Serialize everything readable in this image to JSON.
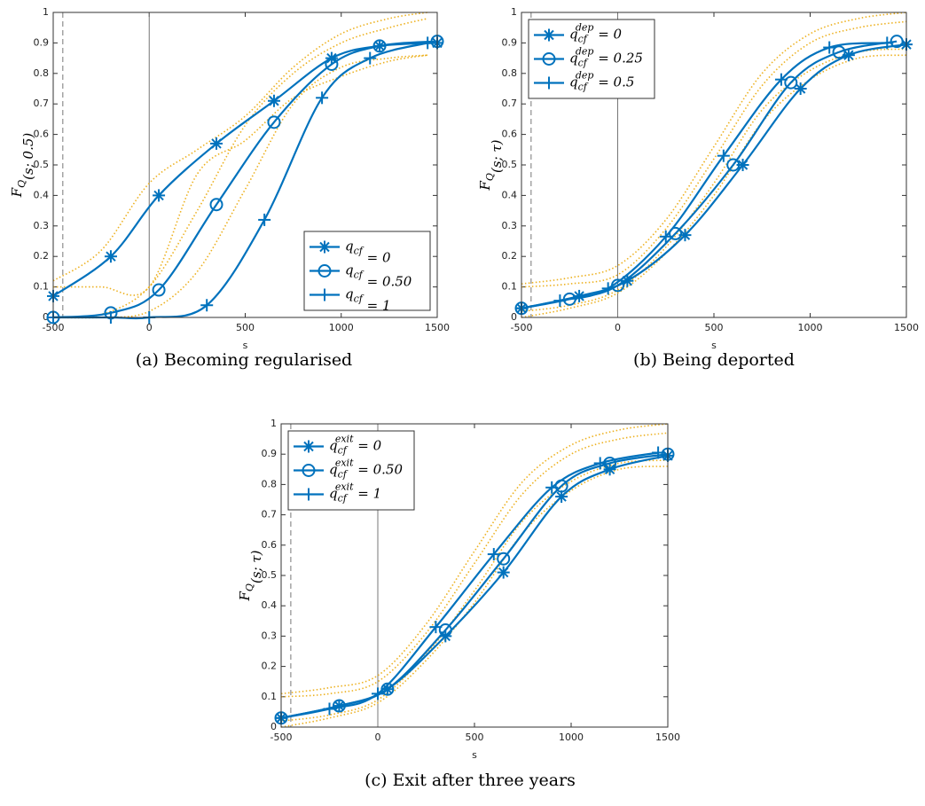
{
  "chart_data": [
    {
      "type": "line",
      "caption": "(a) Becoming regularised",
      "xlabel": "s",
      "ylabel": "FQ(s; 0.5)",
      "xlim": [
        -500,
        1500
      ],
      "xticks": [
        -500,
        0,
        500,
        1000,
        1500
      ],
      "ylim": [
        0,
        1
      ],
      "yticks": [
        0,
        0.1,
        0.2,
        0.3,
        0.4,
        0.5,
        0.6,
        0.7,
        0.8,
        0.9,
        1
      ],
      "legend": "lower right",
      "vlines": [
        {
          "value": -450,
          "style": "dashed"
        },
        {
          "value": 0,
          "style": "solid"
        }
      ],
      "series": [
        {
          "name": "qcf = 0",
          "color": "#0072bd",
          "marker": "star",
          "x": [
            -500,
            -200,
            50,
            350,
            650,
            950,
            1200,
            1500
          ],
          "values": [
            0.07,
            0.2,
            0.4,
            0.57,
            0.71,
            0.85,
            0.89,
            0.9
          ]
        },
        {
          "name": "qcf = 0.50",
          "color": "#0072bd",
          "marker": "circle",
          "x": [
            -500,
            -200,
            50,
            350,
            650,
            950,
            1200,
            1500
          ],
          "values": [
            0,
            0.015,
            0.09,
            0.37,
            0.64,
            0.83,
            0.89,
            0.905
          ]
        },
        {
          "name": "qcf = 1",
          "color": "#0072bd",
          "marker": "plus",
          "x": [
            -500,
            -200,
            0,
            300,
            600,
            900,
            1150,
            1450
          ],
          "values": [
            0,
            0,
            0,
            0.04,
            0.32,
            0.72,
            0.85,
            0.9
          ]
        }
      ],
      "bands": {
        "color": "#edb120",
        "x": [
          -500,
          -250,
          0,
          250,
          500,
          750,
          1000,
          1250,
          1450
        ],
        "series": [
          [
            0.12,
            0.22,
            0.44,
            0.55,
            0.66,
            0.82,
            0.93,
            0.98,
            1
          ],
          [
            0.1,
            0.1,
            0.1,
            0.47,
            0.58,
            0.72,
            0.79,
            0.84,
            0.86
          ],
          [
            0,
            0.01,
            0.1,
            0.35,
            0.63,
            0.8,
            0.9,
            0.95,
            0.98
          ],
          [
            0,
            0,
            0.02,
            0.15,
            0.42,
            0.7,
            0.82,
            0.85,
            0.86
          ]
        ]
      }
    },
    {
      "type": "line",
      "caption": "(b) Being deported",
      "xlabel": "s",
      "ylabel": "FQ(s; τ)",
      "xlim": [
        -500,
        1500
      ],
      "xticks": [
        -500,
        0,
        500,
        1000,
        1500
      ],
      "ylim": [
        0,
        1
      ],
      "yticks": [
        0,
        0.1,
        0.2,
        0.3,
        0.4,
        0.5,
        0.6,
        0.7,
        0.8,
        0.9,
        1
      ],
      "legend": "upper left",
      "vlines": [
        {
          "value": -450,
          "style": "dashed"
        },
        {
          "value": 0,
          "style": "solid"
        }
      ],
      "series": [
        {
          "name": "qcfdep = 0",
          "color": "#0072bd",
          "marker": "star",
          "x": [
            -500,
            -200,
            50,
            350,
            650,
            950,
            1200,
            1500
          ],
          "values": [
            0.03,
            0.07,
            0.12,
            0.27,
            0.5,
            0.75,
            0.86,
            0.895
          ]
        },
        {
          "name": "qcfdep = 0.25",
          "color": "#0072bd",
          "marker": "circle",
          "x": [
            -500,
            -250,
            0,
            300,
            600,
            900,
            1150,
            1450
          ],
          "values": [
            0.03,
            0.06,
            0.105,
            0.275,
            0.5,
            0.77,
            0.87,
            0.905
          ]
        },
        {
          "name": "qcfdep = 0.5",
          "color": "#0072bd",
          "marker": "plus",
          "x": [
            -500,
            -300,
            -50,
            250,
            550,
            850,
            1100,
            1400
          ],
          "values": [
            0.03,
            0.055,
            0.095,
            0.265,
            0.53,
            0.78,
            0.885,
            0.9
          ]
        }
      ],
      "bands": {
        "color": "#edb120",
        "x": [
          -500,
          -250,
          0,
          250,
          500,
          750,
          1000,
          1250,
          1500
        ],
        "series": [
          [
            0.11,
            0.13,
            0.17,
            0.32,
            0.56,
            0.8,
            0.93,
            0.98,
            1
          ],
          [
            0.1,
            0.11,
            0.14,
            0.29,
            0.52,
            0.76,
            0.9,
            0.95,
            0.97
          ],
          [
            0.02,
            0.04,
            0.09,
            0.23,
            0.44,
            0.68,
            0.81,
            0.87,
            0.88
          ],
          [
            0,
            0.03,
            0.08,
            0.21,
            0.4,
            0.64,
            0.78,
            0.85,
            0.86
          ]
        ]
      }
    },
    {
      "type": "line",
      "caption": "(c) Exit after three years",
      "xlabel": "s",
      "ylabel": "FQ(s; τ)",
      "xlim": [
        -500,
        1500
      ],
      "xticks": [
        -500,
        0,
        500,
        1000,
        1500
      ],
      "ylim": [
        0,
        1
      ],
      "yticks": [
        0,
        0.1,
        0.2,
        0.3,
        0.4,
        0.5,
        0.6,
        0.7,
        0.8,
        0.9,
        1
      ],
      "legend": "upper left",
      "vlines": [
        {
          "value": -450,
          "style": "dashed"
        },
        {
          "value": 0,
          "style": "solid"
        }
      ],
      "series": [
        {
          "name": "qcfexit = 0",
          "color": "#0072bd",
          "marker": "star",
          "x": [
            -500,
            -200,
            50,
            350,
            650,
            950,
            1200,
            1500
          ],
          "values": [
            0.03,
            0.07,
            0.125,
            0.3,
            0.51,
            0.76,
            0.85,
            0.895
          ]
        },
        {
          "name": "qcfexit = 0.50",
          "color": "#0072bd",
          "marker": "circle",
          "x": [
            -500,
            -200,
            50,
            350,
            650,
            950,
            1200,
            1500
          ],
          "values": [
            0.03,
            0.07,
            0.125,
            0.32,
            0.555,
            0.795,
            0.87,
            0.9
          ]
        },
        {
          "name": "qcfexit = 1",
          "color": "#0072bd",
          "marker": "plus",
          "x": [
            -500,
            -250,
            0,
            300,
            600,
            900,
            1150,
            1450
          ],
          "values": [
            0.03,
            0.06,
            0.11,
            0.33,
            0.57,
            0.79,
            0.87,
            0.905
          ]
        }
      ],
      "bands": {
        "color": "#edb120",
        "x": [
          -500,
          -250,
          0,
          250,
          500,
          750,
          1000,
          1250,
          1500
        ],
        "series": [
          [
            0.11,
            0.13,
            0.17,
            0.34,
            0.58,
            0.81,
            0.93,
            0.98,
            1
          ],
          [
            0.1,
            0.11,
            0.15,
            0.31,
            0.54,
            0.77,
            0.9,
            0.95,
            0.97
          ],
          [
            0.02,
            0.04,
            0.09,
            0.24,
            0.45,
            0.68,
            0.81,
            0.87,
            0.88
          ],
          [
            0,
            0.03,
            0.08,
            0.22,
            0.41,
            0.64,
            0.78,
            0.85,
            0.86
          ]
        ]
      }
    }
  ]
}
